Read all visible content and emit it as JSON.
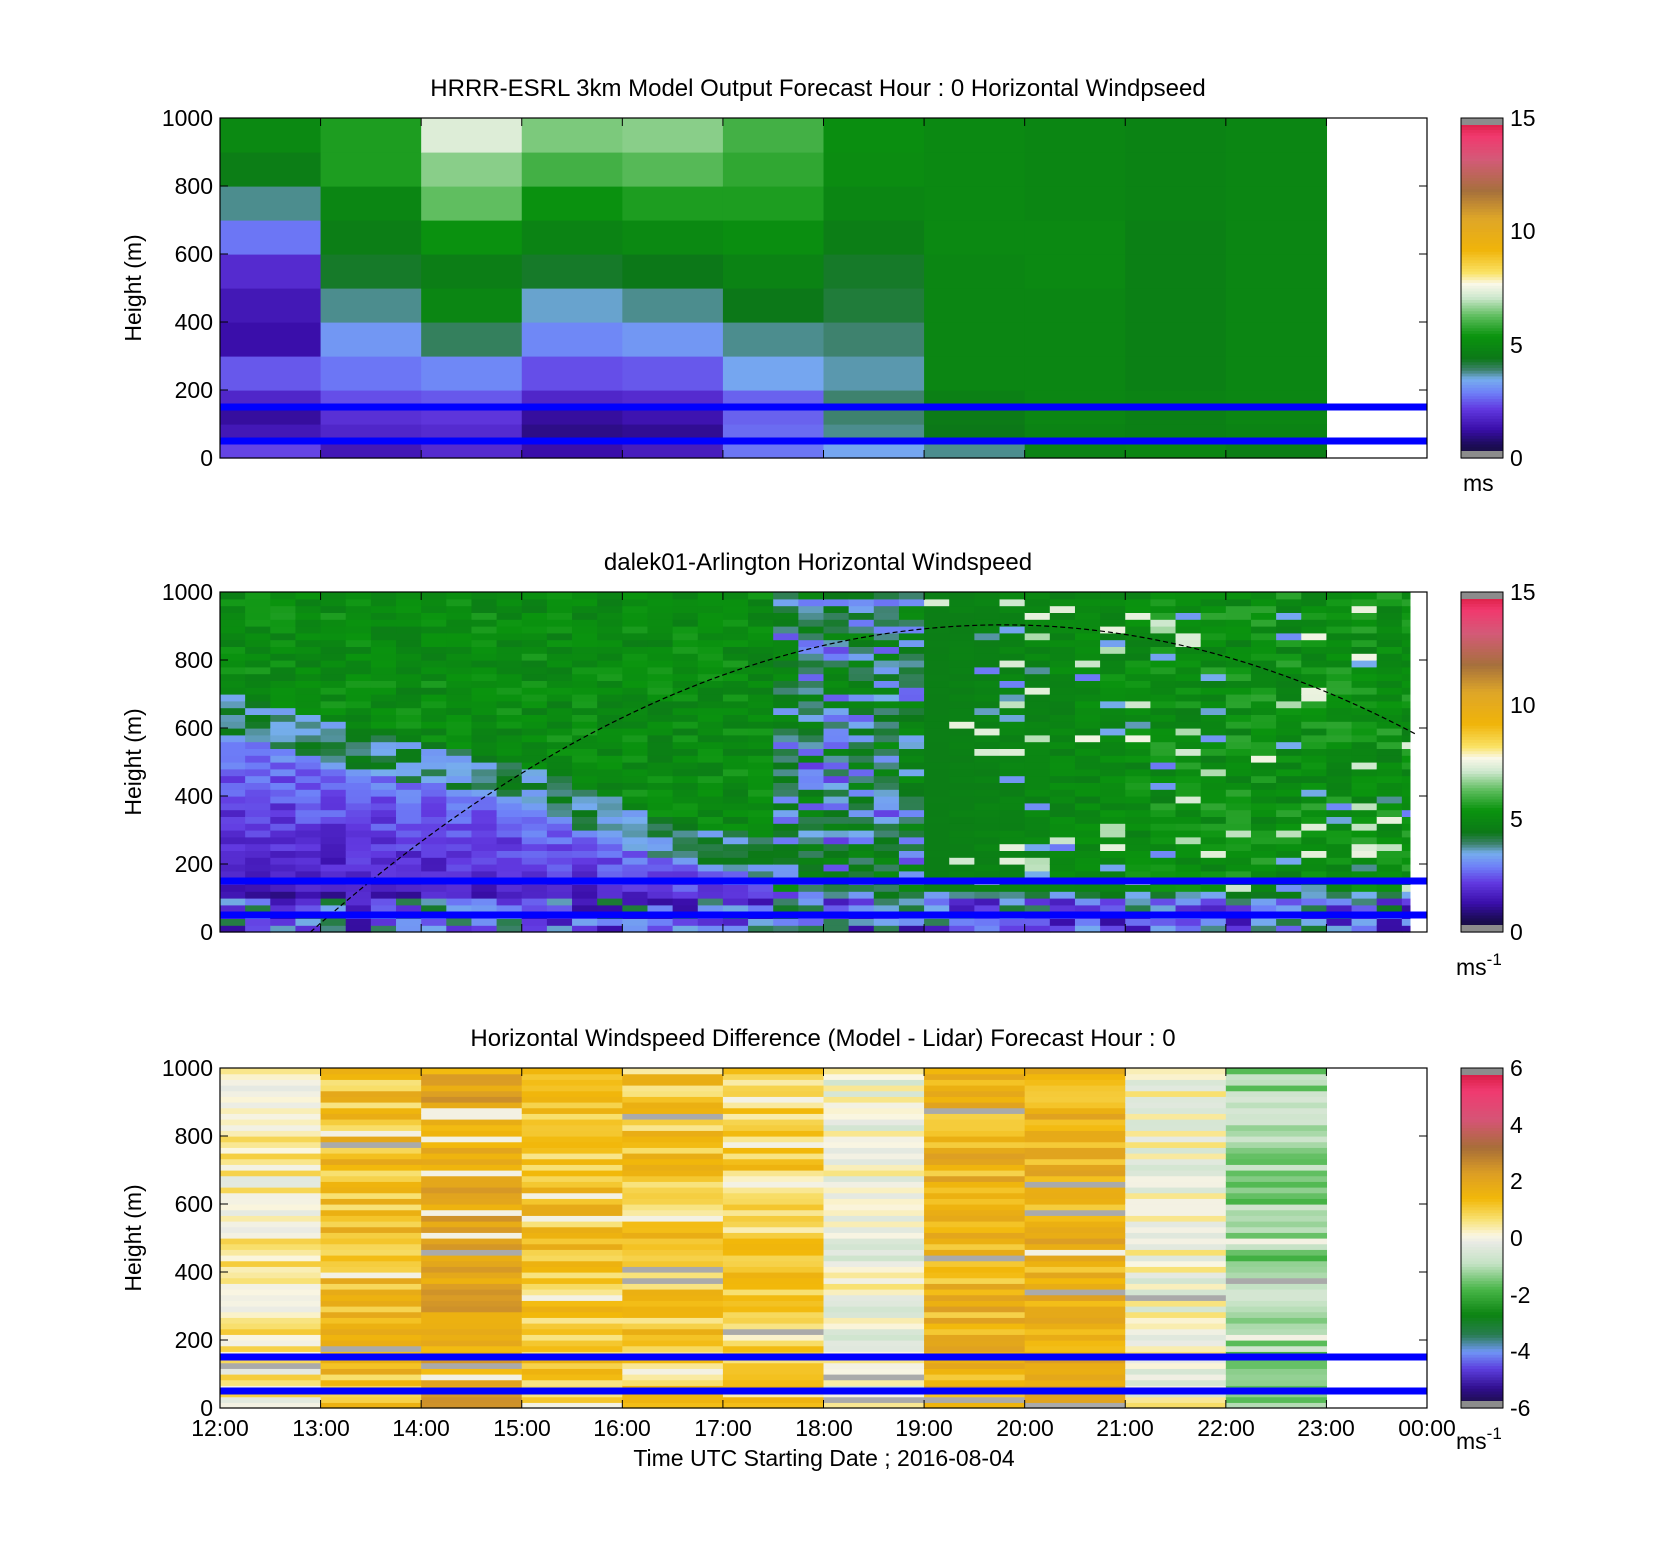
{
  "figure": {
    "x_tick_labels": [
      "12:00",
      "13:00",
      "14:00",
      "15:00",
      "16:00",
      "17:00",
      "18:00",
      "19:00",
      "20:00",
      "21:00",
      "22:00",
      "23:00",
      "00:00"
    ],
    "x_axis_label": "Time UTC  Starting Date ; 2016-08-04",
    "reference_line_color": "#0000ff",
    "reference_heights_m": [
      50,
      150
    ]
  },
  "chart_data": [
    {
      "type": "heatmap",
      "title": "HRRR-ESRL 3km Model Output   Forecast Hour : 0 Horizontal Windpseed",
      "ylabel": "Height (m)",
      "y_ticks": [
        "0",
        "200",
        "400",
        "600",
        "800",
        "1000"
      ],
      "ylim": [
        0,
        1000
      ],
      "x_range_hours": [
        12,
        24
      ],
      "x_categories": [
        "12:00",
        "13:00",
        "14:00",
        "15:00",
        "16:00",
        "17:00",
        "18:00",
        "19:00",
        "20:00",
        "21:00",
        "22:00"
      ],
      "y_bin_edges_m": [
        0,
        50,
        100,
        150,
        200,
        300,
        400,
        500,
        600,
        700,
        800,
        900,
        1000
      ],
      "values_mps": [
        [
          2.3,
          1.5,
          1.2,
          1.8,
          2.5,
          1.3,
          1.5,
          1.9,
          2.8,
          3.8,
          4.6,
          5.0
        ],
        [
          1.5,
          1.8,
          2.0,
          2.4,
          2.8,
          3.2,
          3.8,
          4.3,
          4.6,
          4.9,
          5.6,
          5.6
        ],
        [
          1.9,
          1.9,
          2.1,
          2.5,
          3.0,
          4.0,
          4.9,
          4.6,
          5.3,
          6.3,
          6.6,
          7.3
        ],
        [
          1.3,
          1.0,
          1.2,
          1.8,
          2.4,
          3.0,
          3.6,
          4.3,
          4.8,
          5.3,
          6.0,
          6.5
        ],
        [
          1.6,
          1.1,
          1.4,
          1.9,
          2.5,
          3.2,
          3.8,
          4.4,
          5.0,
          5.6,
          6.2,
          6.6
        ],
        [
          2.8,
          2.7,
          2.6,
          2.6,
          3.4,
          3.8,
          4.4,
          4.8,
          5.2,
          5.6,
          5.8,
          6.0
        ],
        [
          3.4,
          3.8,
          3.9,
          3.9,
          3.7,
          3.9,
          4.2,
          4.3,
          4.6,
          4.9,
          5.1,
          5.2
        ],
        [
          3.8,
          4.4,
          4.5,
          4.7,
          4.9,
          4.9,
          4.9,
          4.9,
          5.0,
          5.0,
          5.0,
          5.0
        ],
        [
          4.8,
          4.8,
          4.9,
          4.9,
          4.9,
          4.9,
          4.9,
          5.0,
          5.0,
          4.9,
          4.9,
          4.9
        ],
        [
          4.9,
          4.7,
          4.7,
          4.8,
          4.7,
          4.7,
          4.7,
          4.7,
          4.7,
          4.8,
          4.8,
          4.8
        ],
        [
          4.6,
          4.8,
          4.9,
          4.9,
          4.9,
          4.9,
          4.9,
          4.9,
          4.9,
          4.9,
          4.9,
          4.9
        ]
      ],
      "colorbar": {
        "range": [
          0,
          15
        ],
        "ticks": [
          "0",
          "5",
          "10",
          "15"
        ],
        "unit": "ms"
      }
    },
    {
      "type": "heatmap",
      "title": "dalek01-Arlington  Horizontal Windspeed",
      "ylabel": "Height (m)",
      "y_ticks": [
        "0",
        "200",
        "400",
        "600",
        "800",
        "1000"
      ],
      "ylim": [
        0,
        1000
      ],
      "x_range_hours": [
        12,
        24
      ],
      "column_width_hours": 0.25,
      "data_end_hours": 23.83,
      "boundary_layer_top_m": [
        [
          12.0,
          600
        ],
        [
          13.0,
          520
        ],
        [
          14.0,
          440
        ],
        [
          15.0,
          380
        ],
        [
          16.0,
          260
        ],
        [
          17.0,
          180
        ],
        [
          18.0,
          120
        ],
        [
          18.7,
          60
        ]
      ],
      "low_layer_top_m": 110,
      "night_noise_fraction": 0.45,
      "dashed_curve_m": [
        [
          12.9,
          0
        ],
        [
          20.2,
          900
        ],
        [
          23.9,
          580
        ]
      ],
      "colorbar": {
        "range": [
          0,
          15
        ],
        "ticks": [
          "0",
          "5",
          "10",
          "15"
        ],
        "unit": "ms",
        "exponent": "-1"
      }
    },
    {
      "type": "heatmap",
      "title": "Horizontal Windspeed Difference (Model - Lidar) Forecast Hour : 0",
      "ylabel": "Height (m)",
      "y_ticks": [
        "0",
        "200",
        "400",
        "600",
        "800",
        "1000"
      ],
      "ylim": [
        0,
        1000
      ],
      "x_range_hours": [
        12,
        24
      ],
      "x_categories": [
        "12:00",
        "13:00",
        "14:00",
        "15:00",
        "16:00",
        "17:00",
        "18:00",
        "19:00",
        "20:00",
        "21:00",
        "22:00"
      ],
      "column_mean_diff_mps": [
        0.4,
        1.3,
        2.0,
        1.2,
        1.1,
        0.9,
        0.0,
        1.6,
        1.7,
        0.1,
        -1.2
      ],
      "colorbar": {
        "range": [
          -6,
          6
        ],
        "ticks": [
          "-6",
          "-4",
          "-2",
          "0",
          "2",
          "4",
          "6"
        ],
        "unit": "ms",
        "exponent": "-1"
      }
    }
  ]
}
